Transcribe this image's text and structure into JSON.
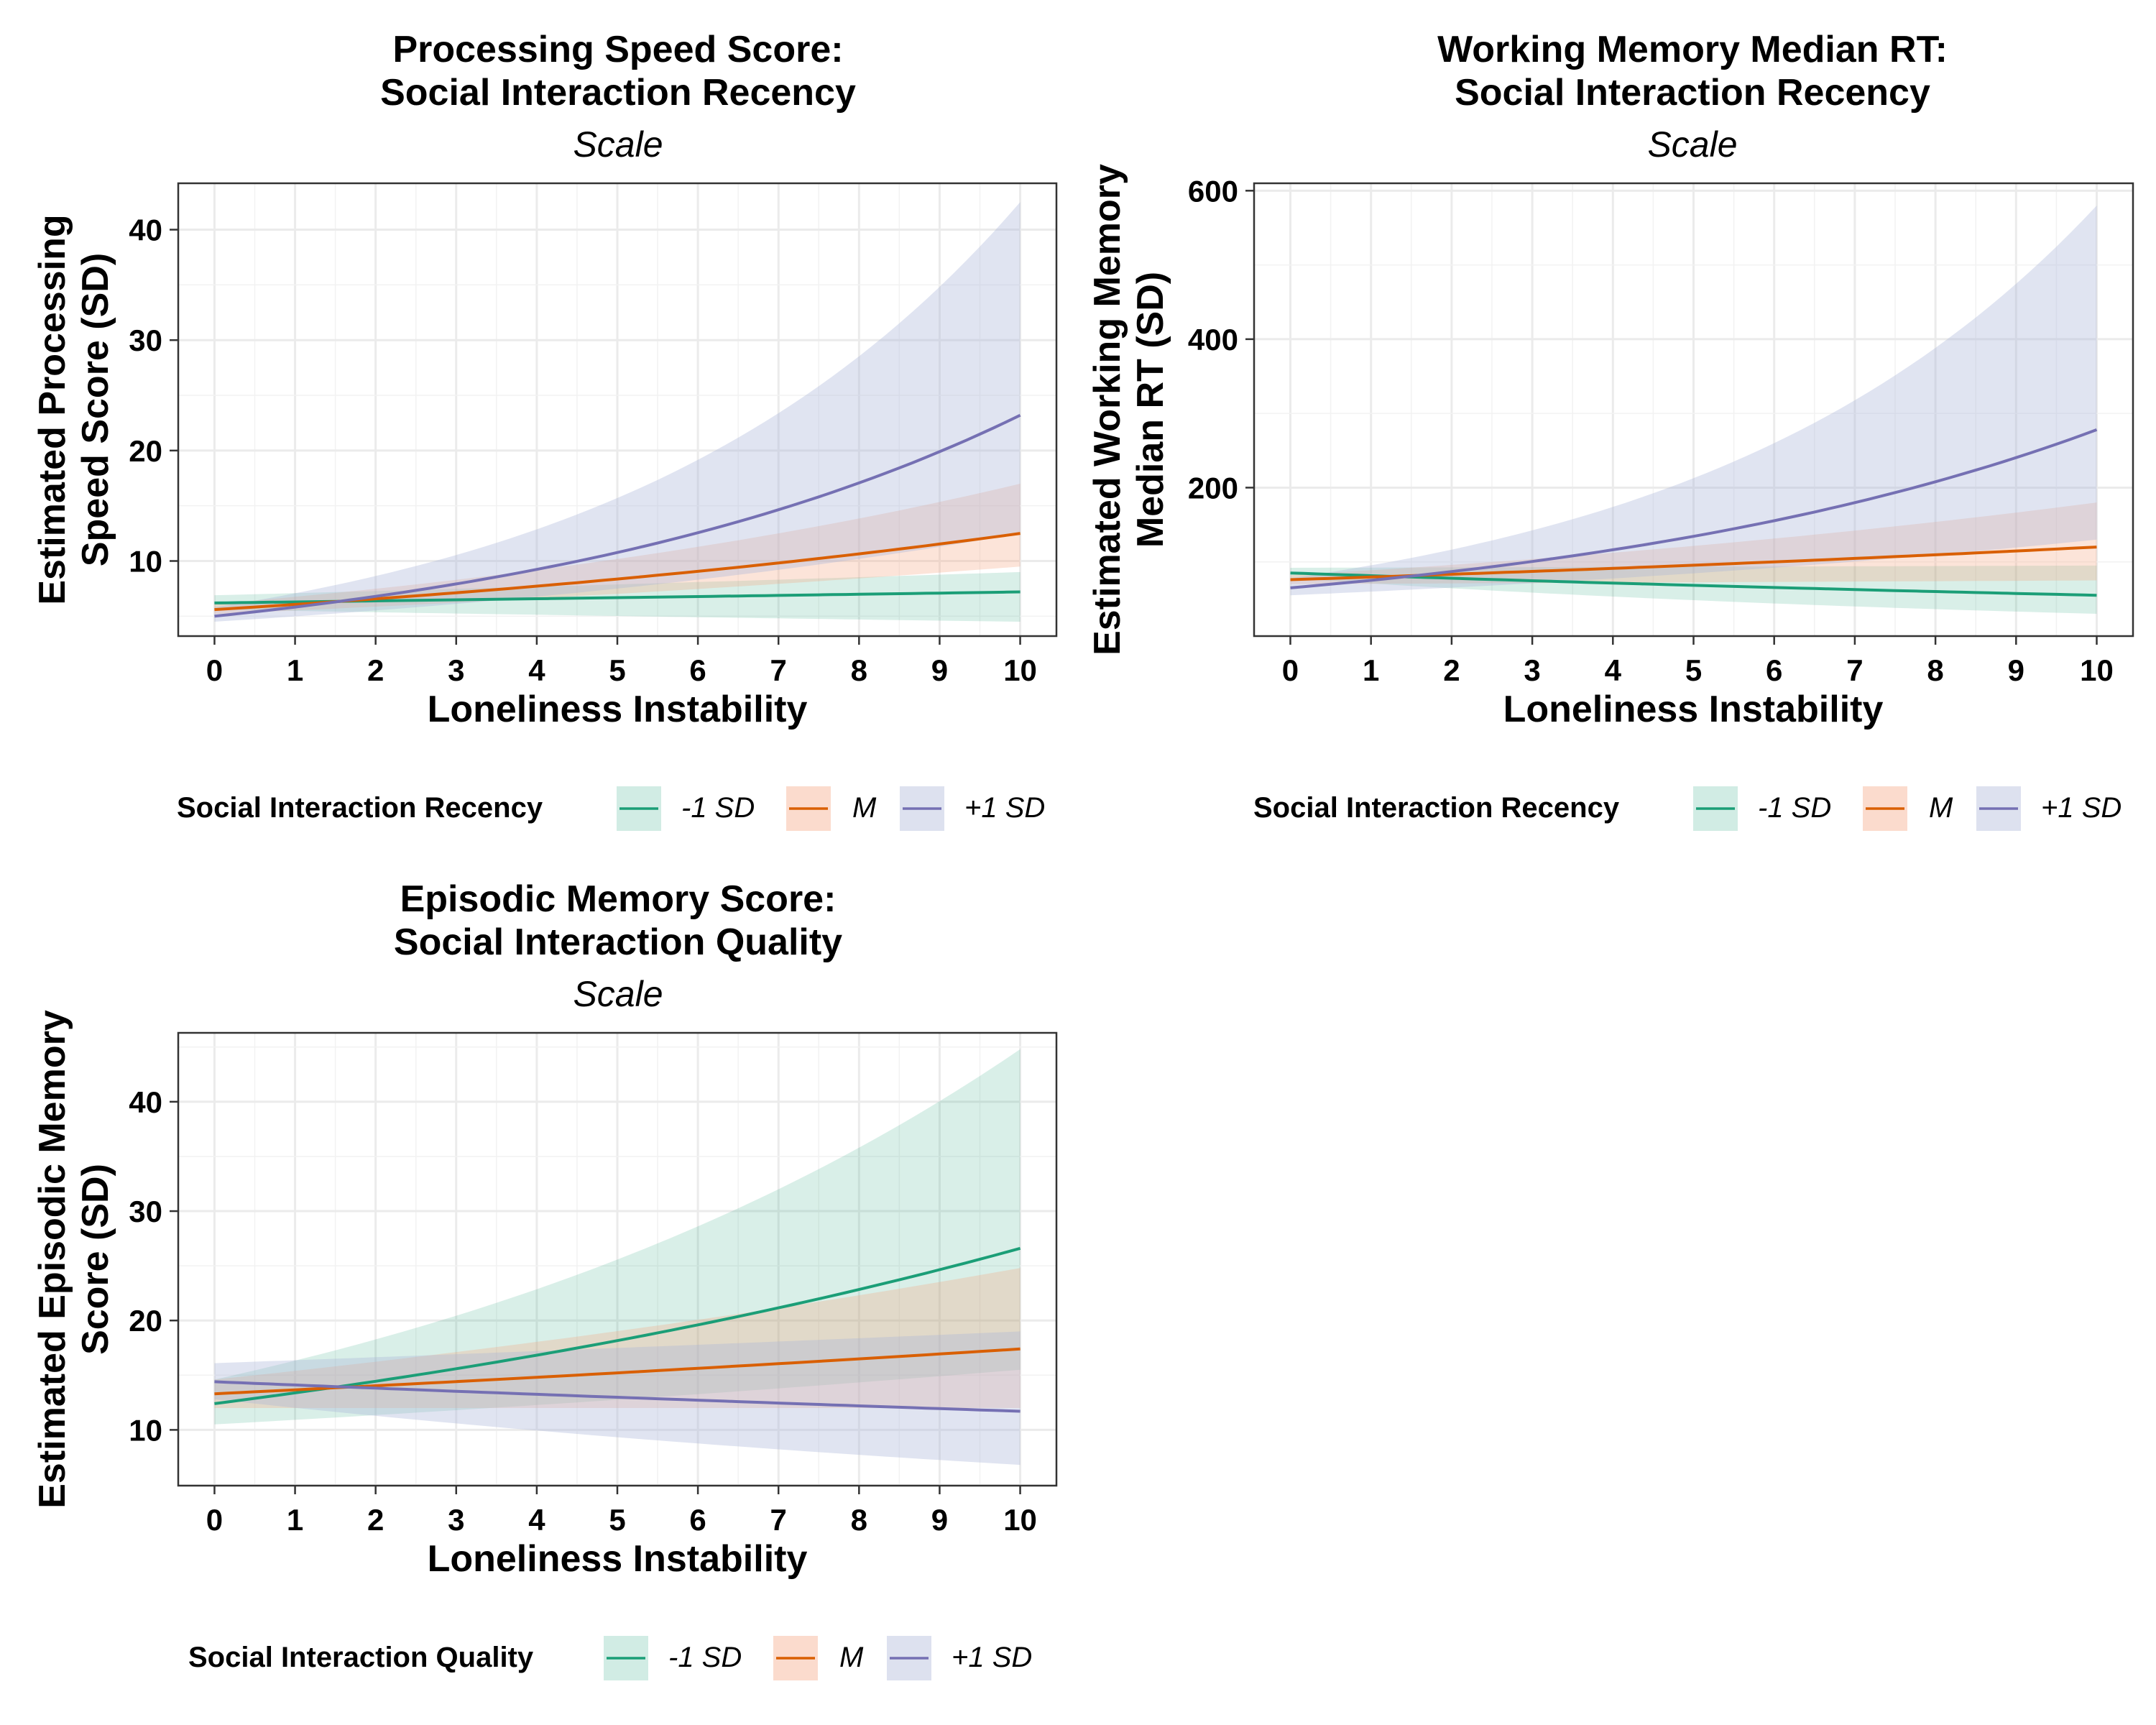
{
  "colors": {
    "low": "#1b9e77",
    "mean": "#d95f02",
    "high": "#7570b3",
    "low_fill": "#1b9e77",
    "mean_fill": "#f4a582",
    "high_fill": "#a9b3d8"
  },
  "chart_data": [
    {
      "type": "line",
      "title_line1": "Processing Speed Score:",
      "title_line2": "Social Interaction Recency",
      "subtitle": "Scale",
      "xlabel": "Loneliness Instability",
      "ylabel_line1": "Estimated Processing",
      "ylabel_line2": "Speed Score (SD)",
      "xlim": [
        -0.45,
        10.45
      ],
      "ylim": [
        3.2,
        44.2
      ],
      "xticks": [
        "0",
        "1",
        "2",
        "3",
        "4",
        "5",
        "6",
        "7",
        "8",
        "9",
        "10"
      ],
      "yticks": [
        "10",
        "20",
        "30",
        "40"
      ],
      "ytick_values": [
        10,
        20,
        30,
        40
      ],
      "legend_title": "Social Interaction Recency",
      "legend_position": "bottom",
      "legend_labels": [
        "-1 SD",
        "M",
        "+1 SD"
      ],
      "series": [
        {
          "name": "-1 SD",
          "key": "low",
          "start": 6.2,
          "end": 7.2,
          "lo_start": 5.6,
          "lo_end": 4.5,
          "hi_start": 6.9,
          "hi_end": 9.0
        },
        {
          "name": "M",
          "key": "mean",
          "start": 5.6,
          "end": 12.5,
          "lo_start": 5.2,
          "lo_end": 9.5,
          "hi_start": 6.1,
          "hi_end": 17.0
        },
        {
          "name": "+1 SD",
          "key": "high",
          "start": 5.0,
          "end": 23.2,
          "lo_start": 4.5,
          "lo_end": 12.5,
          "hi_start": 5.8,
          "hi_end": 42.5
        }
      ]
    },
    {
      "type": "line",
      "title_line1": "Working Memory Median RT:",
      "title_line2": "Social Interaction Recency",
      "subtitle": "Scale",
      "xlabel": "Loneliness Instability",
      "ylabel_line1": "Estimated Working Memory",
      "ylabel_line2": "Median RT (SD)",
      "xlim": [
        -0.45,
        10.45
      ],
      "ylim": [
        0,
        610
      ],
      "xticks": [
        "0",
        "1",
        "2",
        "3",
        "4",
        "5",
        "6",
        "7",
        "8",
        "9",
        "10"
      ],
      "yticks": [
        "200",
        "400",
        "600"
      ],
      "ytick_values": [
        200,
        400,
        600
      ],
      "legend_title": "Social Interaction Recency",
      "legend_position": "bottom",
      "legend_labels": [
        "-1 SD",
        "M",
        "+1 SD"
      ],
      "series": [
        {
          "name": "-1 SD",
          "key": "low",
          "start": 85,
          "end": 55,
          "lo_start": 78,
          "lo_end": 30,
          "hi_start": 92,
          "hi_end": 95
        },
        {
          "name": "M",
          "key": "mean",
          "start": 76,
          "end": 120,
          "lo_start": 70,
          "lo_end": 75,
          "hi_start": 82,
          "hi_end": 180
        },
        {
          "name": "+1 SD",
          "key": "high",
          "start": 65,
          "end": 278,
          "lo_start": 55,
          "lo_end": 130,
          "hi_start": 78,
          "hi_end": 580
        }
      ]
    },
    {
      "type": "line",
      "title_line1": "Episodic Memory Score:",
      "title_line2": "Social Interaction Quality",
      "subtitle": "Scale",
      "xlabel": "Loneliness Instability",
      "ylabel_line1": "Estimated Episodic Memory",
      "ylabel_line2": "Score (SD)",
      "xlim": [
        -0.45,
        10.45
      ],
      "ylim": [
        4.9,
        46.3
      ],
      "xticks": [
        "0",
        "1",
        "2",
        "3",
        "4",
        "5",
        "6",
        "7",
        "8",
        "9",
        "10"
      ],
      "yticks": [
        "10",
        "20",
        "30",
        "40"
      ],
      "ytick_values": [
        10,
        20,
        30,
        40
      ],
      "legend_title": "Social Interaction Quality",
      "legend_position": "bottom",
      "legend_labels": [
        "-1 SD",
        "M",
        "+1 SD"
      ],
      "series": [
        {
          "name": "-1 SD",
          "key": "low",
          "start": 12.4,
          "end": 26.6,
          "lo_start": 10.5,
          "lo_end": 15.5,
          "hi_start": 14.6,
          "hi_end": 44.8
        },
        {
          "name": "M",
          "key": "mean",
          "start": 13.3,
          "end": 17.4,
          "lo_start": 12.0,
          "lo_end": 12.0,
          "hi_start": 14.6,
          "hi_end": 24.8
        },
        {
          "name": "+1 SD",
          "key": "high",
          "start": 14.4,
          "end": 11.7,
          "lo_start": 12.8,
          "lo_end": 6.8,
          "hi_start": 16.1,
          "hi_end": 19.0
        }
      ]
    }
  ]
}
